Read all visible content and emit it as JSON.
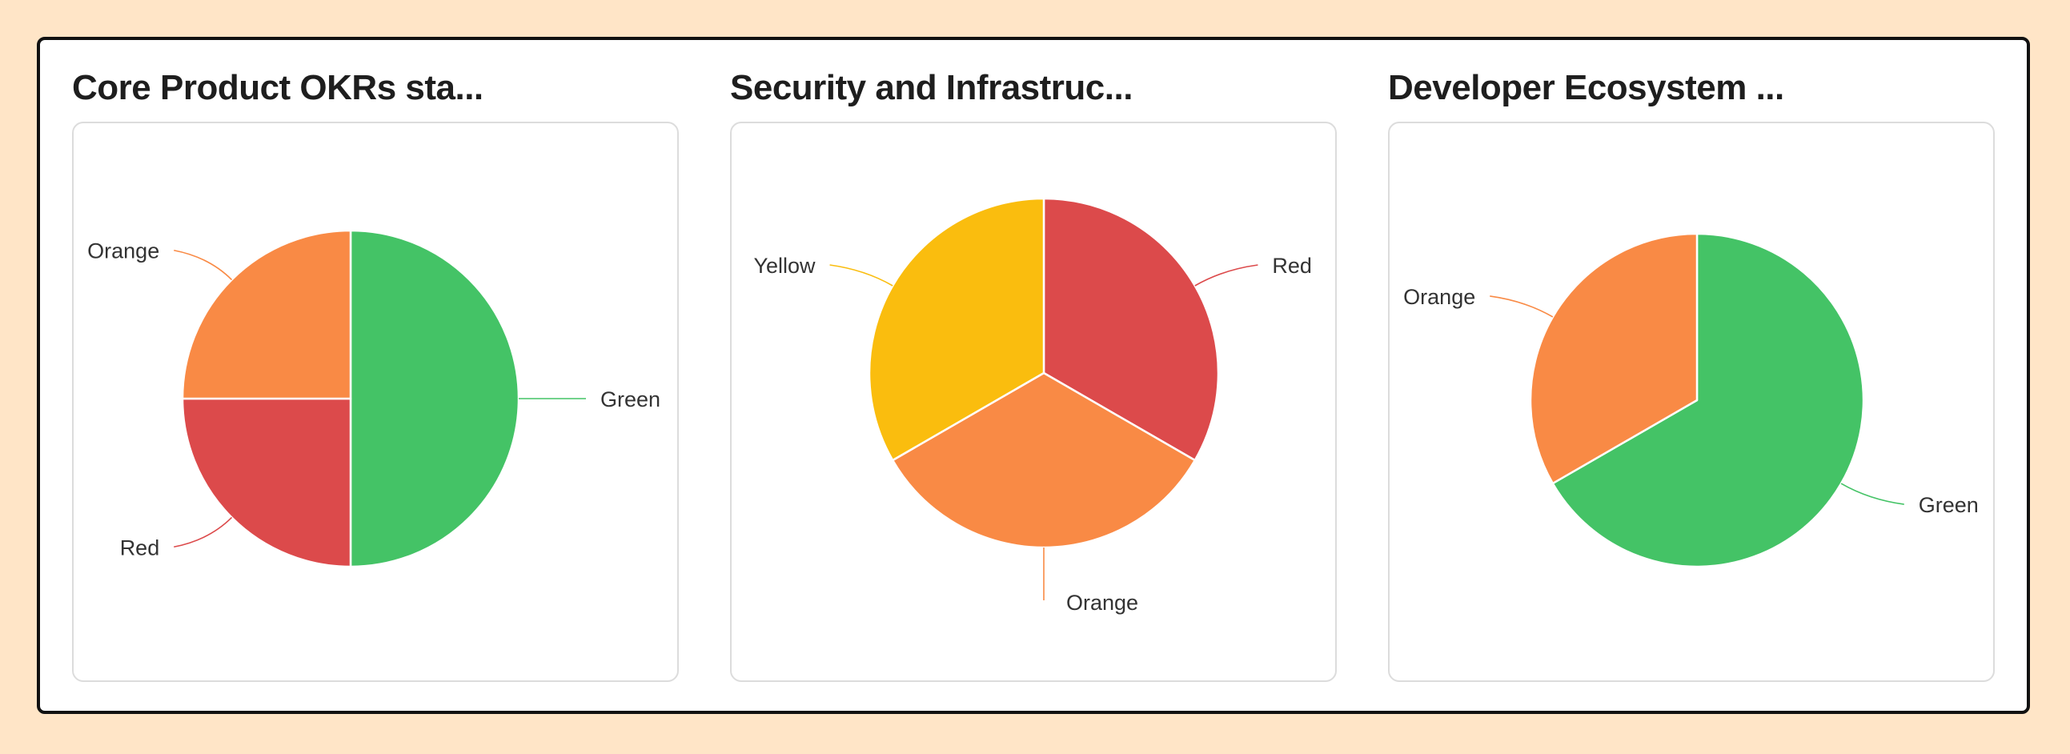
{
  "colors": {
    "Green": "#44C366",
    "Orange": "#F98A45",
    "Red": "#DC4A4B",
    "Yellow": "#FABD0E",
    "background": "#FFE5C7"
  },
  "panels": [
    {
      "title": "Core Product OKRs sta..."
    },
    {
      "title": "Security and Infrastruc..."
    },
    {
      "title": "Developer Ecosystem ..."
    }
  ],
  "chart_data": [
    {
      "type": "pie",
      "title": "Core Product OKRs sta...",
      "slices": [
        {
          "label": "Green",
          "value": 50
        },
        {
          "label": "Red",
          "value": 25
        },
        {
          "label": "Orange",
          "value": 25
        }
      ]
    },
    {
      "type": "pie",
      "title": "Security and Infrastruc...",
      "slices": [
        {
          "label": "Red",
          "value": 33.33
        },
        {
          "label": "Orange",
          "value": 33.33
        },
        {
          "label": "Yellow",
          "value": 33.33
        }
      ]
    },
    {
      "type": "pie",
      "title": "Developer Ecosystem ...",
      "slices": [
        {
          "label": "Green",
          "value": 66.67
        },
        {
          "label": "Orange",
          "value": 33.33
        }
      ]
    }
  ]
}
